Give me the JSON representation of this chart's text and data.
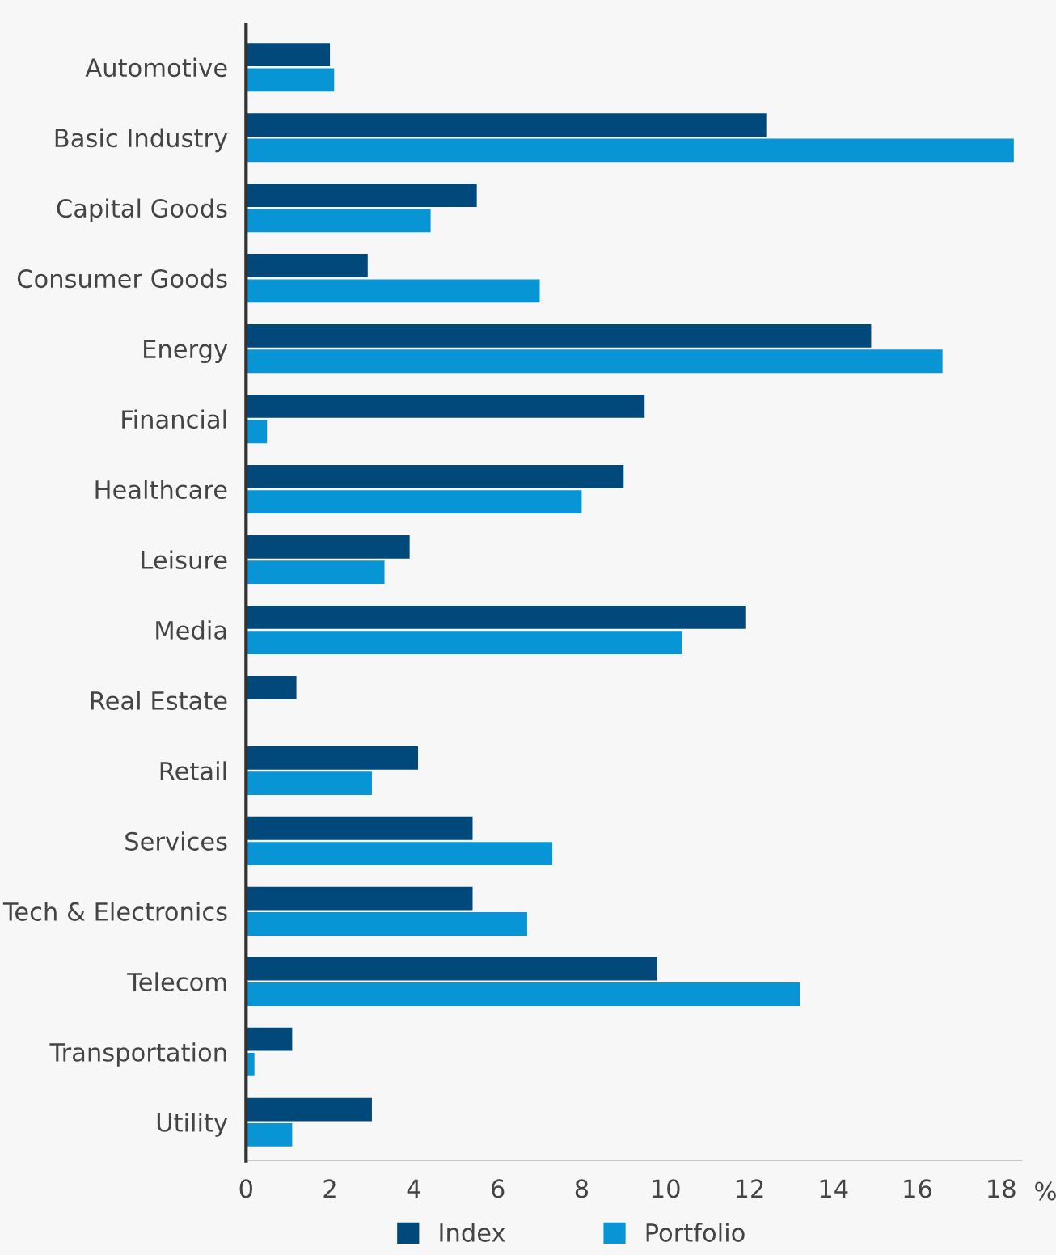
{
  "chart_data": {
    "type": "bar",
    "orientation": "horizontal",
    "xlabel": "%",
    "categories": [
      "Automotive",
      "Basic Industry",
      "Capital Goods",
      "Consumer Goods",
      "Energy",
      "Financial",
      "Healthcare",
      "Leisure",
      "Media",
      "Real Estate",
      "Retail",
      "Services",
      "Tech & Electronics",
      "Telecom",
      "Transportation",
      "Utility"
    ],
    "series": [
      {
        "name": "Index",
        "color": "#00497a",
        "values": [
          2.0,
          12.4,
          5.5,
          2.9,
          14.9,
          9.5,
          9.0,
          3.9,
          11.9,
          1.2,
          4.1,
          5.4,
          5.4,
          9.8,
          1.1,
          3.0
        ]
      },
      {
        "name": "Portfolio",
        "color": "#0795d6",
        "values": [
          2.1,
          18.3,
          4.4,
          7.0,
          16.6,
          0.5,
          8.0,
          3.3,
          10.4,
          null,
          3.0,
          7.3,
          6.7,
          13.2,
          0.2,
          1.1
        ]
      }
    ],
    "xlim": [
      0,
      18.5
    ],
    "xticks": [
      0,
      2,
      4,
      6,
      8,
      10,
      12,
      14,
      16,
      18
    ],
    "grid": false,
    "legend": "bottom"
  }
}
